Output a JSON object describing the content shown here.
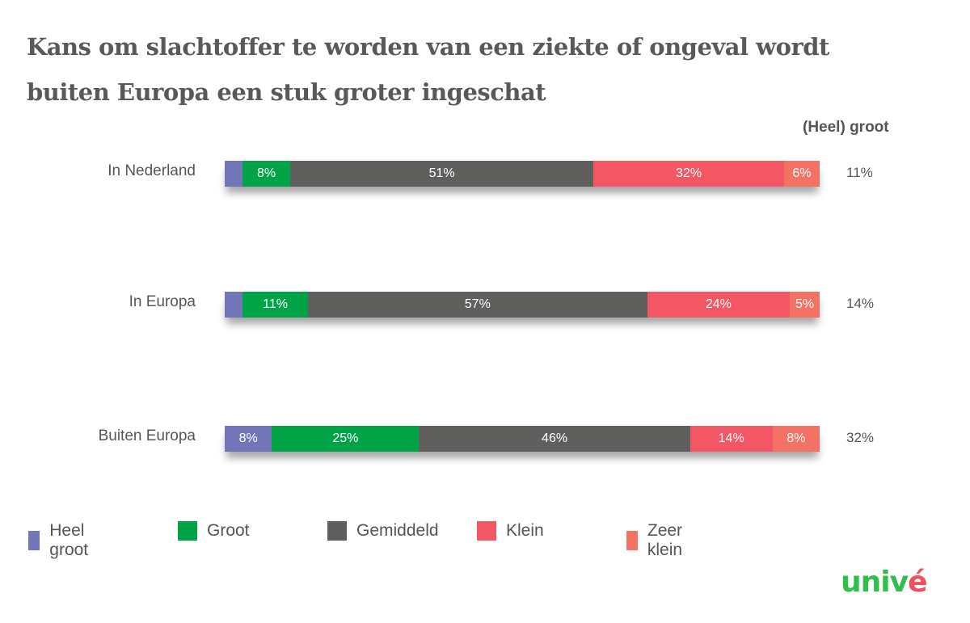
{
  "chart_data": {
    "type": "bar",
    "orientation": "horizontal",
    "stacked": true,
    "title": "Kans om slachtoffer te worden van een ziekte of ongeval wordt buiten Europa een stuk groter ingeschat",
    "title_lines": [
      "Kans om slachtoffer te worden van een ziekte of ongeval wordt",
      "buiten Europa een stuk groter ingeschat"
    ],
    "categories": [
      "In Nederland",
      "In Europa",
      "Buiten Europa"
    ],
    "series": [
      {
        "name": "Heel groot",
        "color": "#7276b8",
        "values": [
          3,
          3,
          8
        ],
        "labels": [
          "",
          "",
          "8%"
        ]
      },
      {
        "name": "Groot",
        "color": "#00a346",
        "values": [
          8,
          11,
          25
        ],
        "labels": [
          "8%",
          "11%",
          "25%"
        ]
      },
      {
        "name": "Gemiddeld",
        "color": "#5f5f5d",
        "values": [
          51,
          57,
          46
        ],
        "labels": [
          "51%",
          "57%",
          "46%"
        ]
      },
      {
        "name": "Klein",
        "color": "#f45764",
        "values": [
          32,
          24,
          14
        ],
        "labels": [
          "32%",
          "24%",
          "14%"
        ]
      },
      {
        "name": "Zeer klein",
        "color": "#f47264",
        "values": [
          6,
          5,
          8
        ],
        "labels": [
          "6%",
          "5%",
          "8%"
        ]
      }
    ],
    "extra_column": {
      "header": "(Heel) groot",
      "values": [
        "11%",
        "14%",
        "32%"
      ]
    },
    "xlabel": "",
    "ylabel": "",
    "xlim": [
      0,
      100
    ],
    "grid": false,
    "legend_position": "bottom"
  },
  "header": {
    "title_line1": "Kans om slachtoffer te worden van een ziekte of ongeval wordt",
    "title_line2": "buiten Europa een stuk groter ingeschat",
    "column_header": "(Heel) groot"
  },
  "rows": [
    {
      "label": "In Nederland",
      "total": "11%"
    },
    {
      "label": "In Europa",
      "total": "14%"
    },
    {
      "label": "Buiten Europa",
      "total": "32%"
    }
  ],
  "legend": [
    {
      "label": "Heel groot",
      "color": "#7276b8"
    },
    {
      "label": "Groot",
      "color": "#00a346"
    },
    {
      "label": "Gemiddeld",
      "color": "#5f5f5d"
    },
    {
      "label": "Klein",
      "color": "#f45764"
    },
    {
      "label": "Zeer klein",
      "color": "#f47264"
    }
  ],
  "brand": {
    "logo_part1": "univ",
    "logo_part2": "é"
  }
}
